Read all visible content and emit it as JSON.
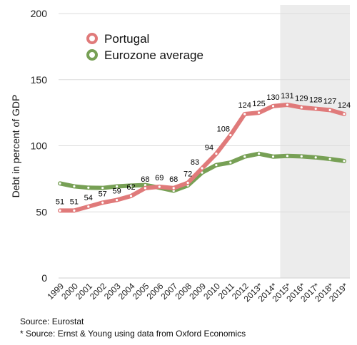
{
  "chart_data": {
    "type": "line",
    "ylabel": "Debt in percent of GDP",
    "ylim": [
      0,
      200
    ],
    "yticks": [
      0,
      50,
      100,
      150,
      200
    ],
    "grid": true,
    "legend_position": "top-left",
    "categories": [
      "1999",
      "2000",
      "2001",
      "2002",
      "2003",
      "2004",
      "2005",
      "2006",
      "2007",
      "2008",
      "2009",
      "2010",
      "2011",
      "2012",
      "2013*",
      "2014*",
      "2015*",
      "2016*",
      "2017*",
      "2018*",
      "2019*"
    ],
    "shaded_from": "2015*",
    "series": [
      {
        "name": "Portugal",
        "color": "#e07a7a",
        "values": [
          51,
          51,
          54,
          57,
          59,
          62,
          68,
          69,
          68,
          72,
          83,
          94,
          108,
          124,
          125,
          130,
          131,
          129,
          128,
          127,
          124
        ],
        "labels": [
          "51",
          "51",
          "54",
          "57",
          "59",
          "62",
          "68",
          "69",
          "68",
          "72",
          "83",
          "94",
          "108",
          "124",
          "125",
          "130",
          "131",
          "129",
          "128",
          "127",
          "124"
        ]
      },
      {
        "name": "Eurozone average",
        "color": "#77a055",
        "values": [
          71.5,
          69.3,
          68.3,
          68.1,
          69.3,
          69.9,
          70.3,
          68.3,
          66.0,
          70.0,
          79.7,
          85.4,
          87.3,
          91.8,
          94.0,
          91.8,
          92.3,
          92.0,
          91.2,
          90.0,
          88.5
        ]
      }
    ]
  },
  "sources": {
    "line1": "Source: Eurostat",
    "line2": "* Source: Ernst & Young using data from Oxford Economics"
  }
}
